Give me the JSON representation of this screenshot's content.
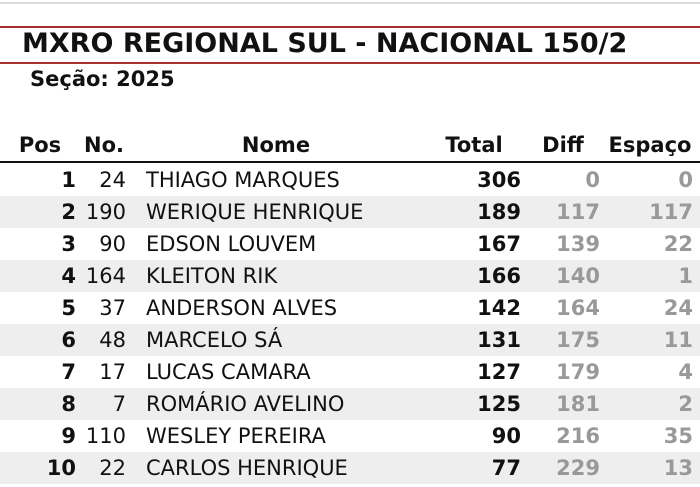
{
  "header": {
    "title": "MXRO REGIONAL SUL - NACIONAL 150/2",
    "subtitle": "Seção: 2025"
  },
  "table": {
    "columns": [
      "Pos",
      "No.",
      "Nome",
      "Total",
      "Diff",
      "Espaço"
    ],
    "rows": [
      [
        1,
        24,
        "THIAGO MARQUES",
        306,
        0,
        0
      ],
      [
        2,
        190,
        "WERIQUE HENRIQUE",
        189,
        117,
        117
      ],
      [
        3,
        90,
        "EDSON LOUVEM",
        167,
        139,
        22
      ],
      [
        4,
        164,
        "KLEITON RIK",
        166,
        140,
        1
      ],
      [
        5,
        37,
        "ANDERSON ALVES",
        142,
        164,
        24
      ],
      [
        6,
        48,
        "MARCELO SÁ",
        131,
        175,
        11
      ],
      [
        7,
        17,
        "LUCAS CAMARA",
        127,
        179,
        4
      ],
      [
        8,
        7,
        "ROMÁRIO AVELINO",
        125,
        181,
        2
      ],
      [
        9,
        110,
        "WESLEY PEREIRA",
        90,
        216,
        35
      ],
      [
        10,
        22,
        "CARLOS HENRIQUE",
        77,
        229,
        13
      ]
    ]
  }
}
